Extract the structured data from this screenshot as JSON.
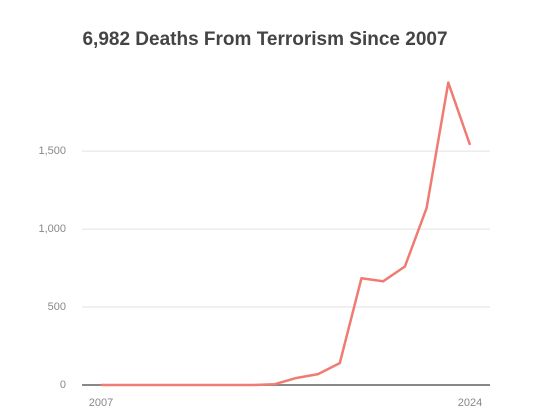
{
  "chart_data": {
    "type": "line",
    "title": "6,982 Deaths From Terrorism Since 2007",
    "x": [
      2007,
      2008,
      2009,
      2010,
      2011,
      2012,
      2013,
      2014,
      2015,
      2016,
      2017,
      2018,
      2019,
      2020,
      2021,
      2022,
      2023,
      2024
    ],
    "series": [
      {
        "name": "Deaths",
        "color": "#f07b72",
        "values": [
          0,
          0,
          0,
          0,
          0,
          0,
          0,
          0,
          5,
          45,
          70,
          140,
          685,
          665,
          760,
          1135,
          1940,
          1540
        ]
      }
    ],
    "xlim": [
      2007,
      2024
    ],
    "xticks": [
      2007,
      2024
    ],
    "ylim": [
      0,
      1950
    ],
    "yticks": [
      0,
      500,
      {
        "value": 1000,
        "label": "1,000"
      },
      {
        "value": 1500,
        "label": "1,500"
      }
    ],
    "grid": true
  }
}
